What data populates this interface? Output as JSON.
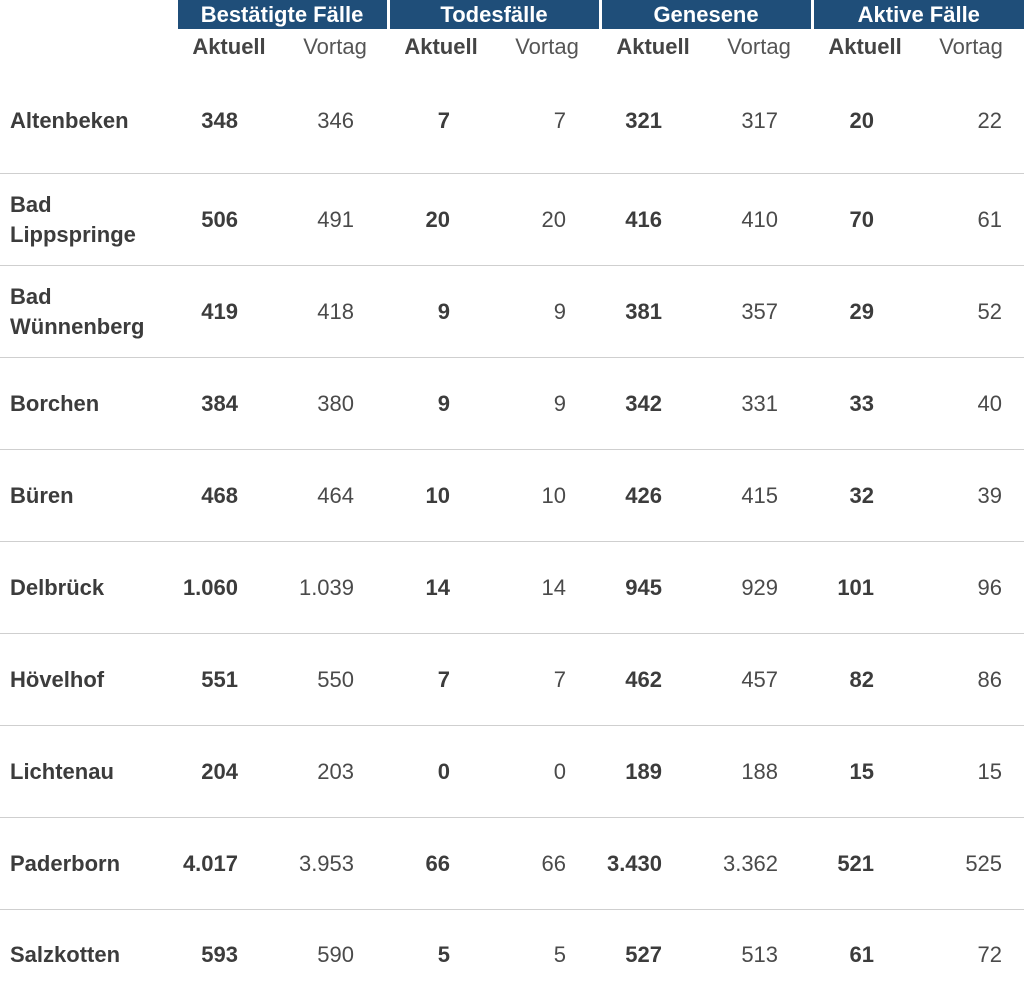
{
  "groups": [
    "Bestätigte Fälle",
    "Todesfälle",
    "Genesene",
    "Aktive Fälle"
  ],
  "subheaders": {
    "current": "Aktuell",
    "previous": "Vortag"
  },
  "rows": [
    {
      "name": "Altenbeken",
      "values": [
        "348",
        "346",
        "7",
        "7",
        "321",
        "317",
        "20",
        "22"
      ]
    },
    {
      "name": "Bad Lippspringe",
      "values": [
        "506",
        "491",
        "20",
        "20",
        "416",
        "410",
        "70",
        "61"
      ]
    },
    {
      "name": "Bad Wünnenberg",
      "values": [
        "419",
        "418",
        "9",
        "9",
        "381",
        "357",
        "29",
        "52"
      ]
    },
    {
      "name": "Borchen",
      "values": [
        "384",
        "380",
        "9",
        "9",
        "342",
        "331",
        "33",
        "40"
      ]
    },
    {
      "name": "Büren",
      "values": [
        "468",
        "464",
        "10",
        "10",
        "426",
        "415",
        "32",
        "39"
      ]
    },
    {
      "name": "Delbrück",
      "values": [
        "1.060",
        "1.039",
        "14",
        "14",
        "945",
        "929",
        "101",
        "96"
      ]
    },
    {
      "name": "Hövelhof",
      "values": [
        "551",
        "550",
        "7",
        "7",
        "462",
        "457",
        "82",
        "86"
      ]
    },
    {
      "name": "Lichtenau",
      "values": [
        "204",
        "203",
        "0",
        "0",
        "189",
        "188",
        "15",
        "15"
      ]
    },
    {
      "name": "Paderborn",
      "values": [
        "4.017",
        "3.953",
        "66",
        "66",
        "3.430",
        "3.362",
        "521",
        "525"
      ]
    },
    {
      "name": "Salzkotten",
      "values": [
        "593",
        "590",
        "5",
        "5",
        "527",
        "513",
        "61",
        "72"
      ]
    }
  ],
  "colors": {
    "header_bg": "#1f4e79",
    "header_text": "#ffffff",
    "divider": "#cfcfcf",
    "text": "#3c3c3c"
  }
}
